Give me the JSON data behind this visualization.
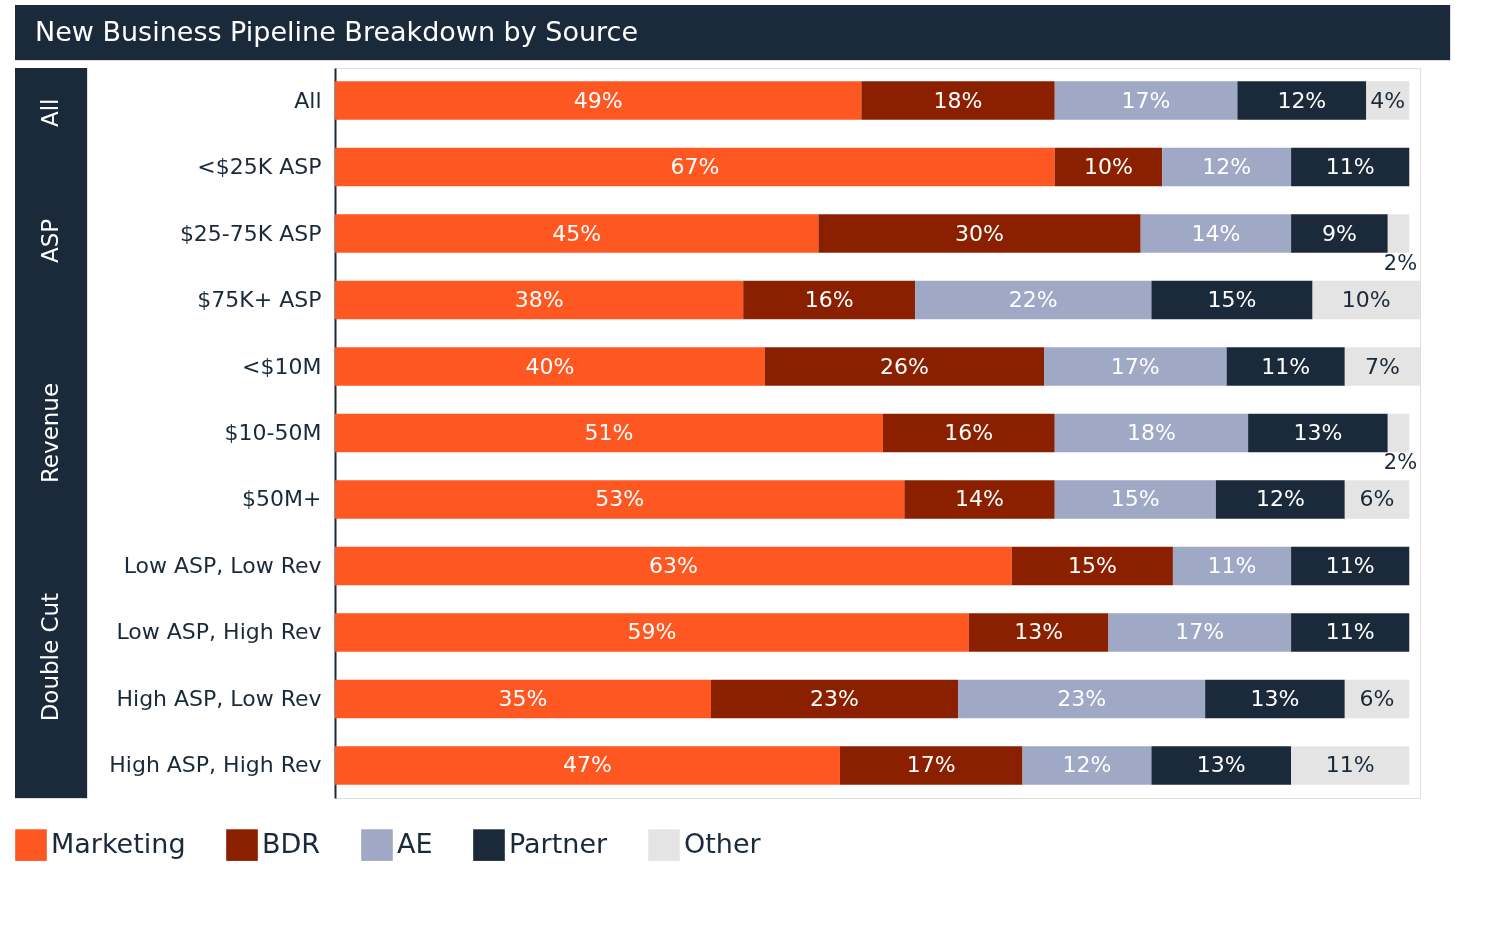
{
  "chart_data": {
    "type": "bar",
    "orientation": "horizontal",
    "stacked": true,
    "title": "New Business Pipeline Breakdown by Source",
    "categories": [
      "All",
      "<$25K ASP",
      "$25-75K ASP",
      "$75K+ ASP",
      "<$10M",
      "$10-50M",
      "$50M+",
      "Low ASP, Low Rev",
      "Low ASP, High Rev",
      "High ASP, Low Rev",
      "High ASP, High Rev"
    ],
    "series": [
      {
        "name": "Marketing",
        "color": "#ff5722",
        "values": [
          49,
          67,
          45,
          38,
          40,
          51,
          53,
          63,
          59,
          35,
          47
        ],
        "value_labels": [
          "49%",
          "67%",
          "45%",
          "38%",
          "40%",
          "51%",
          "53%",
          "63%",
          "59%",
          "35%",
          "47%"
        ]
      },
      {
        "name": "BDR",
        "color": "#8b2000",
        "values": [
          18,
          10,
          30,
          16,
          26,
          16,
          14,
          15,
          13,
          23,
          17
        ],
        "value_labels": [
          "18%",
          "10%",
          "30%",
          "16%",
          "26%",
          "16%",
          "14%",
          "15%",
          "13%",
          "23%",
          "17%"
        ]
      },
      {
        "name": "AE",
        "color": "#9fa8c4",
        "values": [
          17,
          12,
          14,
          22,
          17,
          18,
          15,
          11,
          17,
          23,
          12
        ],
        "value_labels": [
          "17%",
          "12%",
          "14%",
          "22%",
          "17%",
          "18%",
          "15%",
          "11%",
          "17%",
          "23%",
          "12%"
        ]
      },
      {
        "name": "Partner",
        "color": "#1b2a3a",
        "values": [
          12,
          11,
          9,
          15,
          11,
          13,
          12,
          11,
          11,
          13,
          13
        ],
        "value_labels": [
          "12%",
          "11%",
          "9%",
          "15%",
          "11%",
          "13%",
          "12%",
          "11%",
          "11%",
          "13%",
          "13%"
        ]
      },
      {
        "name": "Other",
        "color": "#e4e4e4",
        "values": [
          4,
          null,
          2,
          10,
          7,
          2,
          6,
          null,
          null,
          6,
          11
        ],
        "value_labels": [
          "4%",
          null,
          "2%",
          "10%",
          "7%",
          "2%",
          "6%",
          null,
          null,
          "6%",
          "11%"
        ]
      }
    ],
    "annotations": [
      "All",
      "ASP",
      "Revenue",
      "Double Cut"
    ],
    "xlim": [
      0,
      101
    ],
    "tick_labels": "y",
    "grid": false,
    "legend": "bottom"
  }
}
